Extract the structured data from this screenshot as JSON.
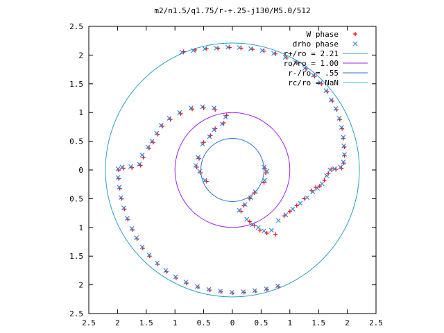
{
  "chart_data": {
    "type": "scatter",
    "title": "m2/n1.5/q1.75/r-+.25-j130/M5.0/512",
    "xlabel": "",
    "ylabel": "",
    "xlim": [
      -2.5,
      2.5
    ],
    "ylim": [
      -2.5,
      2.5
    ],
    "x_ticks": [
      -2.5,
      -2,
      -1.5,
      -1,
      -0.5,
      0,
      0.5,
      1,
      1.5,
      2,
      2.5
    ],
    "y_ticks": [
      -2.5,
      -2,
      -1.5,
      -1,
      -0.5,
      0,
      0.5,
      1,
      1.5,
      2,
      2.5
    ],
    "x_tick_labels": [
      "2.5",
      "2",
      "1.5",
      "1",
      "0.5",
      "0",
      "0.5",
      "1",
      "1.5",
      "2",
      "2.5"
    ],
    "y_tick_labels": [
      "2.5",
      "2",
      "1.5",
      "1",
      "0.5",
      "0",
      "0.5",
      "1",
      "1.5",
      "2",
      "2.5"
    ],
    "grid": false,
    "legend_position": "top-right",
    "colors": {
      "w_phase": "#ff0000",
      "drho_phase": "#3a86d8",
      "r_plus": "#2a9fc4",
      "ro": "#a020f0",
      "r_minus": "#2a6fd0",
      "rc": "#33c8e8"
    },
    "series": [
      {
        "name": "W phase",
        "marker": "plus",
        "color": "#ff0000",
        "points": [
          [
            -0.05,
            2.13
          ],
          [
            -0.25,
            2.12
          ],
          [
            -0.45,
            2.11
          ],
          [
            -0.65,
            2.09
          ],
          [
            -0.85,
            2.06
          ],
          [
            0.15,
            2.12
          ],
          [
            0.35,
            2.1
          ],
          [
            0.55,
            2.07
          ],
          [
            0.75,
            2.02
          ],
          [
            0.95,
            1.95
          ],
          [
            1.12,
            1.86
          ],
          [
            1.28,
            1.76
          ],
          [
            1.43,
            1.63
          ],
          [
            1.55,
            1.5
          ],
          [
            1.65,
            1.36
          ],
          [
            1.74,
            1.2
          ],
          [
            1.81,
            1.05
          ],
          [
            1.87,
            0.88
          ],
          [
            1.91,
            0.72
          ],
          [
            1.93,
            0.55
          ],
          [
            1.95,
            0.4
          ],
          [
            1.95,
            0.25
          ],
          [
            1.94,
            0.12
          ],
          [
            1.9,
            0.03
          ],
          [
            1.8,
            0.01
          ],
          [
            1.73,
            0.02
          ],
          [
            1.67,
            -0.06
          ],
          [
            1.6,
            -0.18
          ],
          [
            1.52,
            -0.28
          ],
          [
            1.45,
            -0.3
          ],
          [
            1.38,
            -0.36
          ],
          [
            1.25,
            -0.5
          ],
          [
            1.12,
            -0.62
          ],
          [
            1.0,
            -0.72
          ],
          [
            0.9,
            -0.8
          ],
          [
            0.75,
            -1.12
          ],
          [
            0.6,
            -1.1
          ],
          [
            0.48,
            -1.05
          ],
          [
            0.38,
            -0.97
          ],
          [
            0.3,
            -0.9
          ],
          [
            0.15,
            -0.72
          ],
          [
            0.2,
            -0.62
          ],
          [
            0.3,
            -0.5
          ],
          [
            0.38,
            -0.4
          ],
          [
            0.55,
            -0.22
          ],
          [
            0.58,
            -0.05
          ],
          [
            0.57,
            0.02
          ],
          [
            -0.58,
            0.2
          ],
          [
            -0.62,
            0.05
          ],
          [
            -0.55,
            -0.05
          ],
          [
            -0.45,
            -0.2
          ],
          [
            -0.5,
            0.48
          ],
          [
            -0.38,
            0.6
          ],
          [
            -0.3,
            0.72
          ],
          [
            -0.15,
            0.82
          ],
          [
            -0.1,
            0.95
          ],
          [
            -0.3,
            1.05
          ],
          [
            -0.5,
            1.08
          ],
          [
            -0.7,
            1.06
          ],
          [
            -0.9,
            0.98
          ],
          [
            -1.08,
            0.88
          ],
          [
            -1.22,
            0.76
          ],
          [
            -1.3,
            0.62
          ],
          [
            -1.38,
            0.48
          ],
          [
            -1.45,
            0.38
          ],
          [
            -1.55,
            0.22
          ],
          [
            -1.6,
            0.08
          ],
          [
            -1.75,
            0.04
          ],
          [
            -1.9,
            0.03
          ],
          [
            -1.98,
            0.0
          ],
          [
            -1.98,
            -0.15
          ],
          [
            -1.96,
            -0.32
          ],
          [
            -1.93,
            -0.5
          ],
          [
            -1.88,
            -0.68
          ],
          [
            -1.82,
            -0.86
          ],
          [
            -1.74,
            -1.04
          ],
          [
            -1.66,
            -1.2
          ],
          [
            -1.56,
            -1.36
          ],
          [
            -1.44,
            -1.5
          ],
          [
            -1.3,
            -1.64
          ],
          [
            -1.15,
            -1.77
          ],
          [
            -0.98,
            -1.88
          ],
          [
            -0.8,
            -1.97
          ],
          [
            -0.6,
            -2.04
          ],
          [
            -0.4,
            -2.09
          ],
          [
            -0.2,
            -2.12
          ],
          [
            0.0,
            -2.14
          ],
          [
            0.2,
            -2.13
          ],
          [
            0.4,
            -2.11
          ],
          [
            0.6,
            -2.08
          ],
          [
            0.8,
            -2.03
          ]
        ]
      },
      {
        "name": "drho phase",
        "marker": "cross",
        "color": "#3a86d8",
        "points": [
          [
            -0.08,
            2.14
          ],
          [
            -0.28,
            2.12
          ],
          [
            -0.48,
            2.11
          ],
          [
            -0.68,
            2.08
          ],
          [
            -0.88,
            2.05
          ],
          [
            0.12,
            2.13
          ],
          [
            0.32,
            2.11
          ],
          [
            0.52,
            2.08
          ],
          [
            0.72,
            2.03
          ],
          [
            0.92,
            1.96
          ],
          [
            1.1,
            1.87
          ],
          [
            1.26,
            1.77
          ],
          [
            1.41,
            1.65
          ],
          [
            1.53,
            1.52
          ],
          [
            1.63,
            1.38
          ],
          [
            1.72,
            1.22
          ],
          [
            1.8,
            1.07
          ],
          [
            1.86,
            0.9
          ],
          [
            1.9,
            0.74
          ],
          [
            1.93,
            0.57
          ],
          [
            1.94,
            0.42
          ],
          [
            1.95,
            0.27
          ],
          [
            1.93,
            0.14
          ],
          [
            1.88,
            0.05
          ],
          [
            1.78,
            0.02
          ],
          [
            1.7,
            0.0
          ],
          [
            1.64,
            -0.1
          ],
          [
            1.56,
            -0.24
          ],
          [
            1.48,
            -0.32
          ],
          [
            1.4,
            -0.38
          ],
          [
            1.3,
            -0.48
          ],
          [
            1.18,
            -0.58
          ],
          [
            1.05,
            -0.68
          ],
          [
            0.93,
            -0.78
          ],
          [
            0.8,
            -0.88
          ],
          [
            0.68,
            -1.05
          ],
          [
            0.55,
            -1.06
          ],
          [
            0.45,
            -1.0
          ],
          [
            0.35,
            -0.95
          ],
          [
            0.25,
            -0.86
          ],
          [
            0.12,
            -0.7
          ],
          [
            0.22,
            -0.6
          ],
          [
            0.32,
            -0.48
          ],
          [
            0.4,
            -0.38
          ],
          [
            0.56,
            -0.18
          ],
          [
            0.6,
            -0.02
          ],
          [
            0.55,
            0.05
          ],
          [
            -0.6,
            0.22
          ],
          [
            -0.64,
            0.08
          ],
          [
            -0.57,
            -0.02
          ],
          [
            -0.48,
            -0.18
          ],
          [
            -0.52,
            0.45
          ],
          [
            -0.4,
            0.58
          ],
          [
            -0.32,
            0.7
          ],
          [
            -0.18,
            0.8
          ],
          [
            -0.12,
            0.92
          ],
          [
            -0.32,
            1.08
          ],
          [
            -0.52,
            1.1
          ],
          [
            -0.72,
            1.08
          ],
          [
            -0.92,
            1.0
          ],
          [
            -1.1,
            0.9
          ],
          [
            -1.24,
            0.78
          ],
          [
            -1.32,
            0.64
          ],
          [
            -1.4,
            0.5
          ],
          [
            -1.47,
            0.4
          ],
          [
            -1.57,
            0.26
          ],
          [
            -1.62,
            0.1
          ],
          [
            -1.77,
            0.06
          ],
          [
            -1.92,
            0.05
          ],
          [
            -1.99,
            0.02
          ],
          [
            -1.99,
            -0.13
          ],
          [
            -1.97,
            -0.3
          ],
          [
            -1.94,
            -0.48
          ],
          [
            -1.89,
            -0.66
          ],
          [
            -1.83,
            -0.84
          ],
          [
            -1.75,
            -1.02
          ],
          [
            -1.67,
            -1.18
          ],
          [
            -1.57,
            -1.34
          ],
          [
            -1.45,
            -1.48
          ],
          [
            -1.31,
            -1.62
          ],
          [
            -1.16,
            -1.75
          ],
          [
            -0.99,
            -1.86
          ],
          [
            -0.81,
            -1.95
          ],
          [
            -0.61,
            -2.03
          ],
          [
            -0.41,
            -2.08
          ],
          [
            -0.21,
            -2.11
          ],
          [
            -0.01,
            -2.13
          ],
          [
            0.19,
            -2.12
          ],
          [
            0.39,
            -2.1
          ],
          [
            0.59,
            -2.07
          ],
          [
            0.79,
            -2.02
          ]
        ]
      }
    ],
    "curves": [
      {
        "name": "r+/ro = 2.21",
        "type": "circle",
        "radius": 2.21,
        "color": "#2a9fc4"
      },
      {
        "name": "ro/ro = 1.00",
        "type": "circle",
        "radius": 1.0,
        "color": "#a020f0"
      },
      {
        "name": "r-/ro = .55",
        "type": "circle",
        "radius": 0.55,
        "color": "#2a6fd0"
      },
      {
        "name": "rc/ro = NaN",
        "type": "circle",
        "radius": null,
        "color": "#33c8e8"
      }
    ]
  }
}
